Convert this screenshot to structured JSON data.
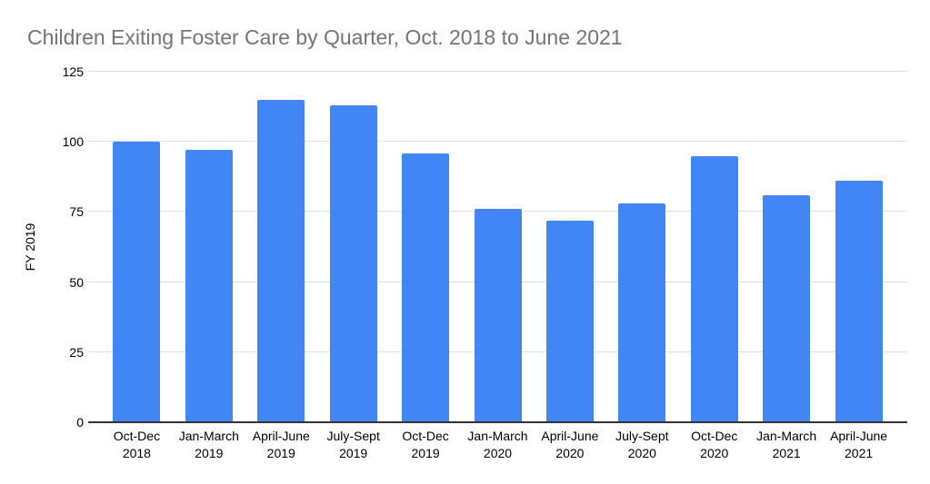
{
  "chart_data": {
    "type": "bar",
    "title": "Children Exiting Foster Care by Quarter, Oct. 2018 to June 2021",
    "xlabel": "",
    "ylabel": "FY 2019",
    "categories": [
      "Oct-Dec 2018",
      "Jan-March 2019",
      "April-June 2019",
      "July-Sept 2019",
      "Oct-Dec 2019",
      "Jan-March 2020",
      "April-June 2020",
      "July-Sept 2020",
      "Oct-Dec 2020",
      "Jan-March 2021",
      "April-June 2021"
    ],
    "values": [
      100,
      97,
      115,
      113,
      96,
      76,
      72,
      78,
      95,
      81,
      86
    ],
    "ylim": [
      0,
      125
    ],
    "yticks": [
      0,
      25,
      50,
      75,
      100,
      125
    ],
    "grid": true,
    "legend": "none",
    "colors": {
      "bar": "#4285F4",
      "title_text": "#757575",
      "axis_text": "#000000",
      "gridline": "#e0e0e0",
      "axis_line": "#333333",
      "background": "#ffffff"
    }
  }
}
